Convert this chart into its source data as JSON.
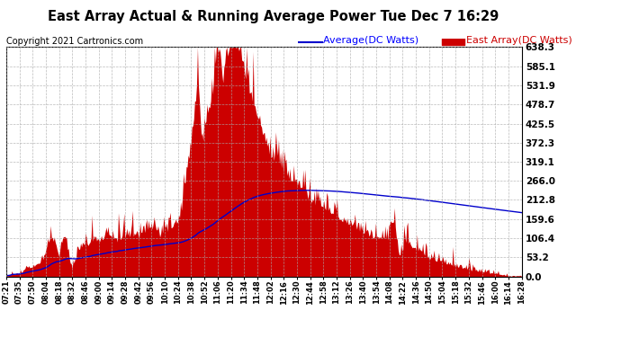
{
  "title": "East Array Actual & Running Average Power Tue Dec 7 16:29",
  "copyright": "Copyright 2021 Cartronics.com",
  "legend_avg": "Average(DC Watts)",
  "legend_east": "East Array(DC Watts)",
  "yticks": [
    0.0,
    53.2,
    106.4,
    159.6,
    212.8,
    266.0,
    319.1,
    372.3,
    425.5,
    478.7,
    531.9,
    585.1,
    638.3
  ],
  "ymax": 638.3,
  "bg_color": "#ffffff",
  "fill_color": "#cc0000",
  "avg_line_color": "#0000cc",
  "grid_color": "#aaaaaa",
  "title_color": "#000000",
  "copyright_color": "#000000",
  "legend_avg_color": "#0000ff",
  "legend_east_color": "#cc0000",
  "xtick_labels": [
    "07:21",
    "07:35",
    "07:50",
    "08:04",
    "08:18",
    "08:32",
    "08:46",
    "09:00",
    "09:14",
    "09:28",
    "09:42",
    "09:56",
    "10:10",
    "10:24",
    "10:38",
    "10:52",
    "11:06",
    "11:20",
    "11:34",
    "11:48",
    "12:02",
    "12:16",
    "12:30",
    "12:44",
    "12:58",
    "13:12",
    "13:26",
    "13:40",
    "13:54",
    "14:08",
    "14:22",
    "14:36",
    "14:50",
    "15:04",
    "15:18",
    "15:32",
    "15:46",
    "16:00",
    "16:14",
    "16:28"
  ]
}
